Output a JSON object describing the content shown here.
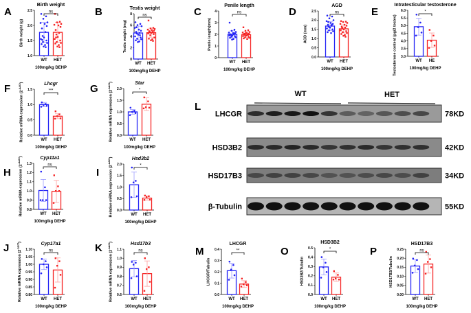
{
  "common": {
    "treatment": "100mg/kg DEHP",
    "colors": {
      "WT": "#2323f5",
      "HET": "#f52323",
      "WT_light": "#9b9bff",
      "HET_light": "#ff9f9f"
    }
  },
  "chart_data": [
    {
      "id": "A",
      "type": "bar",
      "title": "Birth weight",
      "ylabel": "Birth weight (g)",
      "ylim": [
        1.0,
        2.5
      ],
      "yticks": [
        "1.0",
        "1.5",
        "2.0",
        "2.5"
      ],
      "categories": [
        "WT",
        "HET"
      ],
      "significance": "ns",
      "series": [
        {
          "name": "WT",
          "mean": 1.77,
          "sd": 0.33,
          "points": [
            2.38,
            2.3,
            2.22,
            2.1,
            2.08,
            2.05,
            1.98,
            1.9,
            1.78,
            1.65,
            1.6,
            1.55,
            1.5,
            1.45,
            1.42,
            1.38,
            1.35,
            1.3,
            1.28,
            1.52
          ]
        },
        {
          "name": "HET",
          "mean": 1.77,
          "sd": 0.33,
          "points": [
            2.38,
            2.12,
            2.1,
            2.05,
            2.02,
            2.0,
            1.95,
            1.85,
            1.75,
            1.7,
            1.62,
            1.55,
            1.5,
            1.45,
            1.42,
            1.4,
            1.35,
            1.3,
            1.28,
            1.6
          ]
        }
      ]
    },
    {
      "id": "B",
      "type": "bar",
      "title": "Testis weight",
      "ylabel": "Testis weight (mg)",
      "ylim": [
        0,
        8
      ],
      "yticks": [
        "0",
        "2",
        "4",
        "6",
        "8"
      ],
      "categories": [
        "WT",
        "HET"
      ],
      "significance": "ns",
      "series": [
        {
          "name": "WT",
          "mean": 4.6,
          "sd": 1.2,
          "points": [
            6.5,
            6.2,
            6.0,
            5.8,
            5.5,
            5.2,
            5.0,
            4.8,
            4.6,
            4.5,
            4.3,
            4.0,
            3.8,
            3.6,
            3.5,
            3.3,
            3.1,
            3.0,
            4.2,
            5.6
          ]
        },
        {
          "name": "HET",
          "mean": 4.65,
          "sd": 0.8,
          "points": [
            6.8,
            5.5,
            5.4,
            5.3,
            5.2,
            5.1,
            5.0,
            4.9,
            4.8,
            4.7,
            4.6,
            4.5,
            4.4,
            4.2,
            3.8,
            3.6,
            3.5,
            3.3,
            3.2,
            4.9
          ]
        }
      ]
    },
    {
      "id": "C",
      "type": "bar",
      "title": "Penile length",
      "ylabel": "Penile length(mm)",
      "ylim": [
        0,
        4
      ],
      "yticks": [
        "0",
        "1",
        "2",
        "3",
        "4"
      ],
      "categories": [
        "WT",
        "HET"
      ],
      "significance": "ns",
      "series": [
        {
          "name": "WT",
          "mean": 2.0,
          "sd": 0.3,
          "points": [
            3.0,
            2.4,
            2.3,
            2.2,
            2.15,
            2.1,
            2.05,
            2.0,
            2.0,
            1.95,
            1.9,
            1.9,
            1.85,
            1.8,
            1.75,
            1.7,
            1.6,
            1.55,
            2.1,
            2.0
          ]
        },
        {
          "name": "HET",
          "mean": 1.97,
          "sd": 0.25,
          "points": [
            2.6,
            2.35,
            2.3,
            2.2,
            2.15,
            2.1,
            2.05,
            2.0,
            2.0,
            1.95,
            1.9,
            1.85,
            1.8,
            1.75,
            1.7,
            1.65,
            1.6,
            2.1,
            1.95,
            2.05
          ]
        }
      ]
    },
    {
      "id": "D",
      "type": "bar",
      "title": "AGD",
      "ylabel": "AGD (mm)",
      "ylim": [
        0,
        2.5
      ],
      "yticks": [
        "0.0",
        "0.5",
        "1.0",
        "1.5",
        "2.0",
        "2.5"
      ],
      "categories": [
        "WT",
        "HET"
      ],
      "significance": "ns",
      "series": [
        {
          "name": "WT",
          "mean": 1.68,
          "sd": 0.25,
          "points": [
            2.25,
            2.2,
            2.1,
            2.0,
            1.95,
            1.85,
            1.8,
            1.75,
            1.7,
            1.65,
            1.6,
            1.55,
            1.5,
            1.45,
            1.4,
            1.35,
            1.3,
            1.6,
            1.75,
            1.9
          ]
        },
        {
          "name": "HET",
          "mean": 1.53,
          "sd": 0.22,
          "points": [
            1.95,
            1.92,
            1.9,
            1.85,
            1.8,
            1.75,
            1.7,
            1.65,
            1.6,
            1.55,
            1.5,
            1.45,
            1.4,
            1.35,
            1.3,
            1.25,
            1.2,
            1.15,
            1.1,
            1.6
          ]
        }
      ]
    },
    {
      "id": "E",
      "type": "bar",
      "title": "Intratesticular testosterone",
      "ylabel": "Testosterone content (pg/2 testes)",
      "ylim": [
        3.0,
        6.0
      ],
      "yticks": [
        "3.0",
        "3.5",
        "4.0",
        "4.5",
        "5.0",
        "5.5",
        "6.0"
      ],
      "categories": [
        "WT",
        "HE"
      ],
      "significance": "*",
      "series": [
        {
          "name": "WT",
          "mean": 4.93,
          "sd": 0.55,
          "points": [
            5.72,
            5.2,
            4.9,
            4.55,
            4.35
          ]
        },
        {
          "name": "HE",
          "mean": 4.05,
          "sd": 0.47,
          "points": [
            4.72,
            4.35,
            4.0,
            3.7,
            3.55
          ]
        }
      ]
    },
    {
      "id": "F",
      "type": "bar",
      "title": "Lhcgr",
      "italic": true,
      "ylabel": "Relative mRNA expression (2",
      "ylabel_sup": "-ΔΔCt",
      "ylabel_end": ")",
      "ylim": [
        0,
        1.5
      ],
      "yticks": [
        "0.0",
        "0.5",
        "1.0",
        "1.5"
      ],
      "categories": [
        "WT",
        "HET"
      ],
      "significance": "***",
      "series": [
        {
          "name": "WT",
          "mean": 1.0,
          "sd": 0.07,
          "points": [
            1.07,
            1.02,
            0.98,
            0.96,
            0.93
          ]
        },
        {
          "name": "HET",
          "mean": 0.62,
          "sd": 0.08,
          "points": [
            0.78,
            0.68,
            0.62,
            0.55,
            0.54
          ]
        }
      ]
    },
    {
      "id": "G",
      "type": "bar",
      "title": "Star",
      "italic": true,
      "ylabel": "Relative mRNA expression (2",
      "ylabel_sup": "-ΔΔCt",
      "ylabel_end": ")",
      "ylim": [
        0,
        2.0
      ],
      "yticks": [
        "0.0",
        "0.5",
        "1.0",
        "1.5",
        "2.0"
      ],
      "categories": [
        "WT",
        "HET"
      ],
      "significance": "*",
      "series": [
        {
          "name": "WT",
          "mean": 1.0,
          "sd": 0.1,
          "points": [
            1.18,
            1.05,
            1.0,
            0.95,
            0.86
          ]
        },
        {
          "name": "HET",
          "mean": 1.33,
          "sd": 0.27,
          "points": [
            1.62,
            1.45,
            1.2,
            1.18,
            1.15
          ]
        }
      ]
    },
    {
      "id": "H",
      "type": "bar",
      "title": "Cyp11a1",
      "italic": true,
      "ylabel": "Relative mRNA expression (2",
      "ylabel_sup": "-ΔΔCt",
      "ylabel_end": ")",
      "ylim": [
        0.8,
        1.3
      ],
      "yticks": [
        "0.8",
        "0.9",
        "1.0",
        "1.1",
        "1.2",
        "1.3"
      ],
      "categories": [
        "WT",
        "HET"
      ],
      "significance": "ns",
      "series": [
        {
          "name": "WT",
          "mean": 1.005,
          "sd": 0.12,
          "points": [
            1.21,
            1.04,
            0.9,
            0.9,
            0.9
          ]
        },
        {
          "name": "HET",
          "mean": 0.995,
          "sd": 0.12,
          "points": [
            1.17,
            1.05,
            1.0,
            1.0,
            0.87
          ]
        }
      ]
    },
    {
      "id": "I",
      "type": "bar",
      "title": "Hsd3b2",
      "italic": true,
      "ylabel": "Relative mRNA expression (2",
      "ylabel_sup": "-ΔΔCt",
      "ylabel_end": ")",
      "ylim": [
        0,
        2.0
      ],
      "yticks": [
        "0.0",
        "0.5",
        "1.0",
        "1.5",
        "2.0"
      ],
      "categories": [
        "WT",
        "HET"
      ],
      "significance": "*",
      "series": [
        {
          "name": "WT",
          "mean": 1.1,
          "sd": 0.55,
          "points": [
            1.85,
            1.27,
            1.2,
            0.6,
            0.56
          ]
        },
        {
          "name": "HET",
          "mean": 0.52,
          "sd": 0.09,
          "points": [
            0.63,
            0.6,
            0.57,
            0.45,
            0.44
          ]
        }
      ]
    },
    {
      "id": "J",
      "type": "bar",
      "title": "Cyp17a1",
      "italic": true,
      "ylabel": "Relative mRNA expression (2",
      "ylabel_sup": "-ΔΔCt",
      "ylabel_end": ")",
      "ylim": [
        0.8,
        1.1
      ],
      "yticks": [
        "0.80",
        "0.85",
        "0.90",
        "0.95",
        "1.00",
        "1.05",
        "1.10"
      ],
      "categories": [
        "WT",
        "HET"
      ],
      "significance": "ns",
      "series": [
        {
          "name": "WT",
          "mean": 1.0,
          "sd": 0.035,
          "points": [
            1.035,
            1.02,
            1.0,
            0.98,
            0.94
          ]
        },
        {
          "name": "HET",
          "mean": 0.962,
          "sd": 0.08,
          "points": [
            1.04,
            1.02,
            0.99,
            0.93,
            0.845
          ]
        }
      ]
    },
    {
      "id": "K",
      "type": "bar",
      "title": "Hsd17b3",
      "italic": true,
      "ylabel": "Relative mRNA expression (2",
      "ylabel_sup": "-ΔΔCt",
      "ylabel_end": ")",
      "ylim": [
        0.6,
        1.1
      ],
      "yticks": [
        "0.6",
        "0.7",
        "0.8",
        "0.9",
        "1.0",
        "1.1"
      ],
      "categories": [
        "WT",
        "HET"
      ],
      "significance": "ns",
      "series": [
        {
          "name": "WT",
          "mean": 0.885,
          "sd": 0.09,
          "points": [
            0.96,
            0.95,
            0.93,
            0.8,
            0.78
          ]
        },
        {
          "name": "HET",
          "mean": 0.83,
          "sd": 0.14,
          "points": [
            1.0,
            0.9,
            0.88,
            0.74,
            0.64
          ]
        }
      ]
    },
    {
      "id": "M",
      "type": "bar",
      "title": "LHCGR",
      "ylabel": "LHCGR/Tubulin",
      "ylim": [
        0,
        0.4
      ],
      "yticks": [
        "0.0",
        "0.1",
        "0.2",
        "0.3",
        "0.4"
      ],
      "categories": [
        "WT",
        "HET"
      ],
      "significance": "**",
      "series": [
        {
          "name": "WT",
          "mean": 0.21,
          "sd": 0.065,
          "points": [
            0.29,
            0.26,
            0.22,
            0.17,
            0.13
          ]
        },
        {
          "name": "HET",
          "mean": 0.092,
          "sd": 0.03,
          "points": [
            0.14,
            0.11,
            0.09,
            0.08,
            0.07
          ]
        }
      ]
    },
    {
      "id": "O",
      "type": "bar",
      "title": "HSD3B2",
      "ylabel": "HSD3B2/Tubulin",
      "ylim": [
        0,
        0.5
      ],
      "yticks": [
        "0.0",
        "0.1",
        "0.2",
        "0.3",
        "0.4",
        "0.5"
      ],
      "categories": [
        "WT",
        "HET"
      ],
      "significance": "*",
      "series": [
        {
          "name": "WT",
          "mean": 0.295,
          "sd": 0.085,
          "points": [
            0.4,
            0.34,
            0.29,
            0.24,
            0.18
          ]
        },
        {
          "name": "HET",
          "mean": 0.185,
          "sd": 0.045,
          "points": [
            0.25,
            0.21,
            0.17,
            0.16,
            0.16
          ]
        }
      ]
    },
    {
      "id": "P",
      "type": "bar",
      "title": "HSD17B3",
      "ylabel": "HSD17B3/Tubulin",
      "ylim": [
        0,
        0.25
      ],
      "yticks": [
        "0.00",
        "0.05",
        "0.10",
        "0.15",
        "0.20",
        "0.25"
      ],
      "categories": [
        "WT",
        "HET"
      ],
      "significance": "ns",
      "series": [
        {
          "name": "WT",
          "mean": 0.157,
          "sd": 0.035,
          "points": [
            0.198,
            0.19,
            0.16,
            0.14,
            0.12
          ]
        },
        {
          "name": "HET",
          "mean": 0.168,
          "sd": 0.05,
          "points": [
            0.235,
            0.195,
            0.18,
            0.15,
            0.115
          ]
        }
      ]
    }
  ],
  "blot": {
    "panel_label": "L",
    "groups": [
      "WT",
      "HET"
    ],
    "rows": [
      {
        "protein": "LHCGR",
        "kd": "78KD"
      },
      {
        "protein": "HSD3B2",
        "kd": "42KD"
      },
      {
        "protein": "HSD17B3",
        "kd": "34KD"
      },
      {
        "protein": "β-Tubulin",
        "kd": "55KD"
      }
    ]
  }
}
